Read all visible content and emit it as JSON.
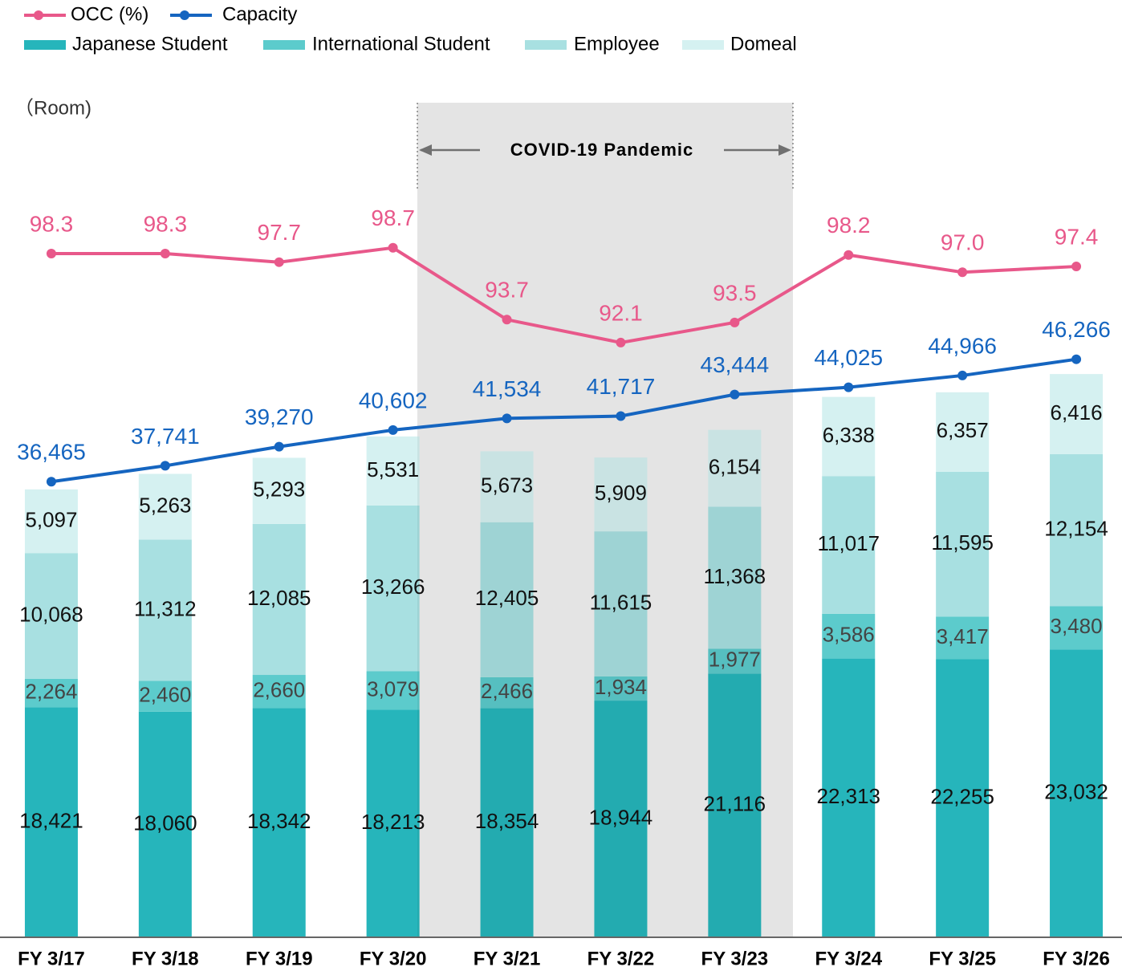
{
  "chart_data": {
    "type": "bar",
    "stacked": true,
    "annotations": [
      "（Room)",
      "COVID-19 Pandemic"
    ],
    "categories": [
      "FY 3/17",
      "FY 3/18",
      "FY 3/19",
      "FY 3/20",
      "FY 3/21",
      "FY 3/22",
      "FY 3/23",
      "FY 3/24",
      "FY 3/25",
      "FY 3/26"
    ],
    "ylim": [
      0,
      66800
    ],
    "y2lim": [
      50.7,
      108.8
    ],
    "series": [
      {
        "name": "Japanese Student",
        "type": "bar",
        "color": "#26b5bb",
        "values": [
          18421,
          18060,
          18342,
          18213,
          18354,
          18944,
          21116,
          22313,
          22255,
          23032
        ],
        "value_labels": [
          "18,421",
          "18,060",
          "18,342",
          "18,213",
          "18,354",
          "18,944",
          "21,116",
          "22,313",
          "22,255",
          "23,032"
        ]
      },
      {
        "name": "International Student",
        "type": "bar",
        "color": "#5ccbcc",
        "values": [
          2264,
          2460,
          2660,
          3079,
          2466,
          1934,
          1977,
          3586,
          3417,
          3480
        ],
        "value_labels": [
          "2,264",
          "2,460",
          "2,660",
          "3,079",
          "2,466",
          "1,934",
          "1,977",
          "3,586",
          "3,417",
          "3,480"
        ]
      },
      {
        "name": "Employee",
        "type": "bar",
        "color": "#a8e0e1",
        "values": [
          10068,
          11312,
          12085,
          13266,
          12405,
          11615,
          11368,
          11017,
          11595,
          12154
        ],
        "value_labels": [
          "10,068",
          "11,312",
          "12,085",
          "13,266",
          "12,405",
          "11,615",
          "11,368",
          "11,017",
          "11,595",
          "12,154"
        ]
      },
      {
        "name": "Domeal",
        "type": "bar",
        "color": "#d5f1f1",
        "values": [
          5097,
          5263,
          5293,
          5531,
          5673,
          5909,
          6154,
          6338,
          6357,
          6416
        ],
        "value_labels": [
          "5,097",
          "5,263",
          "5,293",
          "5,531",
          "5,673",
          "5,909",
          "6,154",
          "6,338",
          "6,357",
          "6,416"
        ]
      },
      {
        "name": "OCC (%)",
        "type": "line",
        "axis": "y2",
        "color": "#e8588a",
        "values": [
          98.3,
          98.3,
          97.7,
          98.7,
          93.7,
          92.1,
          93.5,
          98.2,
          97.0,
          97.4
        ],
        "value_labels": [
          "98.3",
          "98.3",
          "97.7",
          "98.7",
          "93.7",
          "92.1",
          "93.5",
          "98.2",
          "97.0",
          "97.4"
        ]
      },
      {
        "name": "Capacity",
        "type": "line",
        "color": "#1565c0",
        "values": [
          36465,
          37741,
          39270,
          40602,
          41534,
          41717,
          43444,
          44025,
          44966,
          46266
        ],
        "value_labels": [
          "36,465",
          "37,741",
          "39,270",
          "40,602",
          "41,534",
          "41,717",
          "43,444",
          "44,025",
          "44,966",
          "46,266"
        ]
      }
    ]
  }
}
